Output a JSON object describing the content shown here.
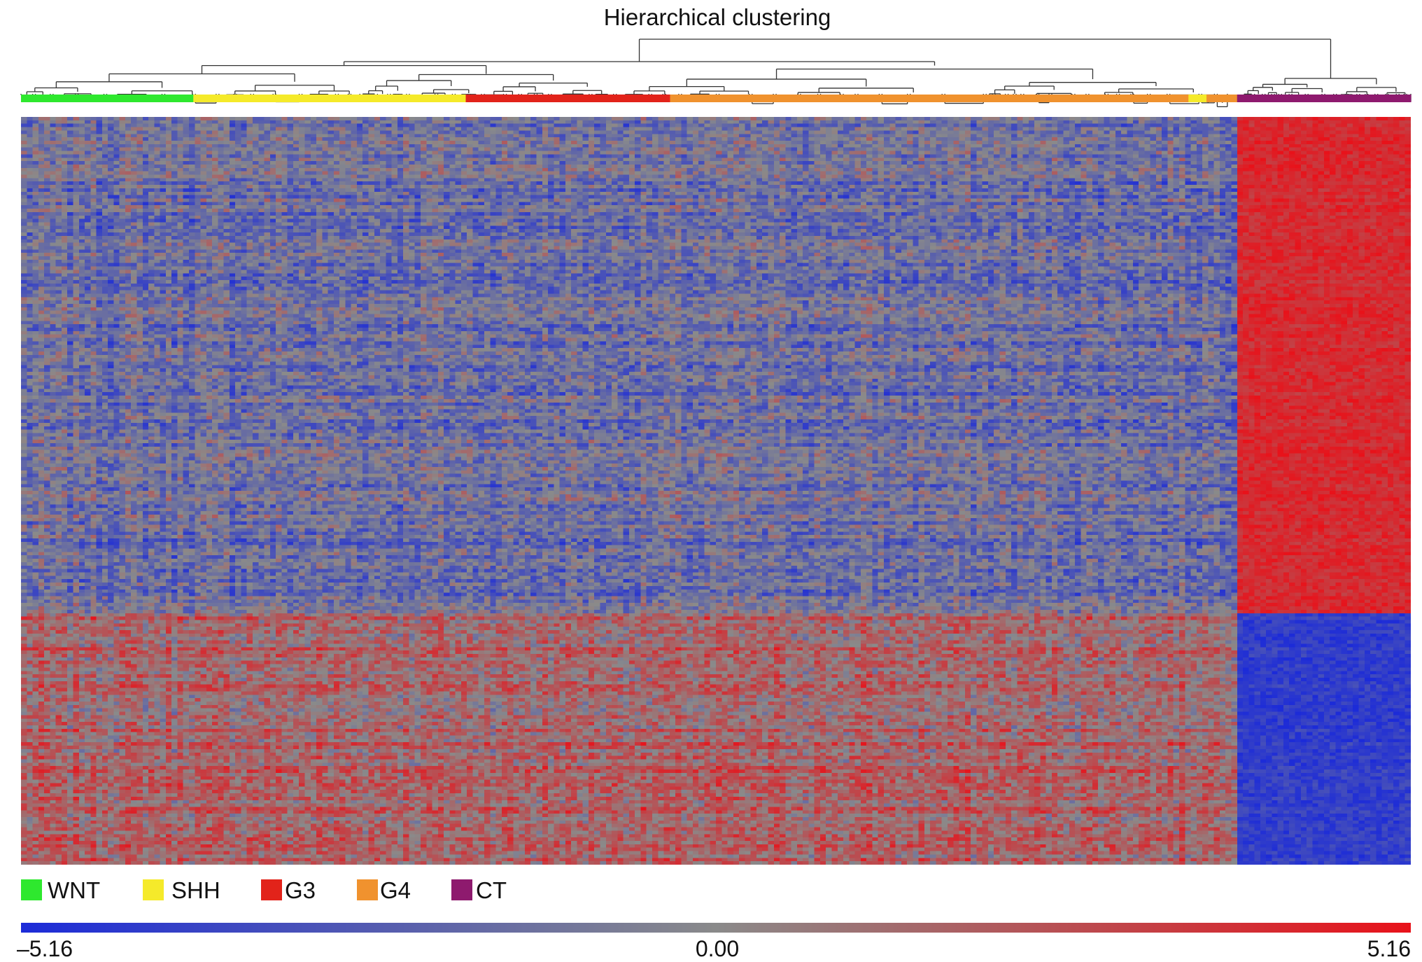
{
  "chart_data": {
    "type": "heatmap",
    "title": "Hierarchical clustering",
    "groups": [
      {
        "name": "WNT",
        "color": "#2ee82e",
        "span": [
          0,
          0.124
        ]
      },
      {
        "name": "SHH",
        "color": "#f5ea2a",
        "span": [
          0.124,
          0.32
        ]
      },
      {
        "name": "G3",
        "color": "#e2231a",
        "span": [
          0.32,
          0.467
        ]
      },
      {
        "name": "G4",
        "color": "#f0922e",
        "span": [
          0.467,
          0.84
        ]
      },
      {
        "name": "SHH",
        "color": "#f5ea2a",
        "span": [
          0.84,
          0.853
        ]
      },
      {
        "name": "G4",
        "color": "#f0922e",
        "span": [
          0.853,
          0.875
        ]
      },
      {
        "name": "CT",
        "color": "#8e1a6e",
        "span": [
          0.875,
          1.0
        ]
      }
    ],
    "legend": [
      {
        "label": "WNT",
        "color": "#2ee82e"
      },
      {
        "label": "SHH",
        "color": "#f5ea2a"
      },
      {
        "label": "G3",
        "color": "#e2231a"
      },
      {
        "label": "G4",
        "color": "#f0922e"
      },
      {
        "label": "CT",
        "color": "#8e1a6e"
      }
    ],
    "color_scale": {
      "min": -5.16,
      "mid": 0.0,
      "max": 5.16,
      "min_label": "–5.16",
      "mid_label": "0.00",
      "max_label": "5.16",
      "colors": [
        "#1c2bd8",
        "#8a8a8a",
        "#e8121a"
      ]
    },
    "blocks": [
      {
        "col": [
          0.875,
          1.0
        ],
        "row": [
          0.0,
          0.66
        ],
        "level": 0.8
      },
      {
        "col": [
          0.875,
          1.0
        ],
        "row": [
          0.66,
          1.0
        ],
        "level": -0.8
      },
      {
        "col": [
          0.0,
          0.875
        ],
        "row": [
          0.0,
          0.66
        ],
        "level": -0.25
      },
      {
        "col": [
          0.0,
          0.875
        ],
        "row": [
          0.66,
          1.0
        ],
        "level": 0.3
      }
    ]
  }
}
